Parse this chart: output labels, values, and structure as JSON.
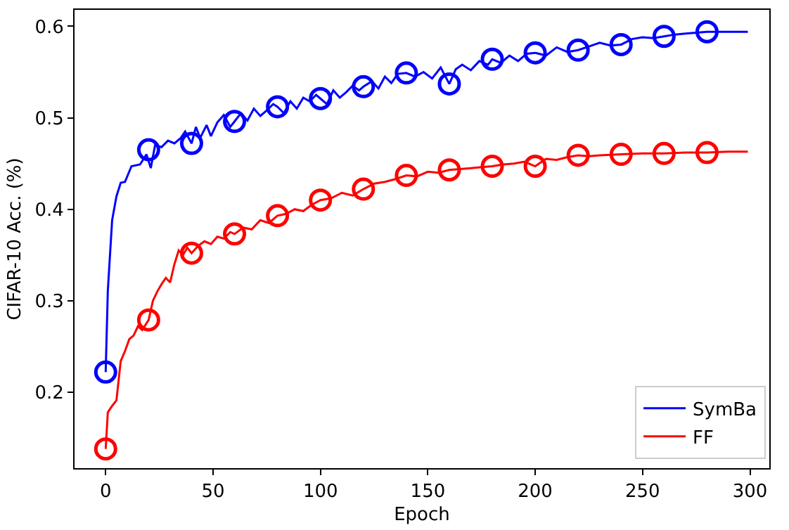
{
  "chart_data": {
    "type": "line",
    "xlabel": "Epoch",
    "ylabel": "CIFAR-10 Acc. (%)",
    "xlim": [
      -14.5,
      309
    ],
    "xticks": [
      0,
      50,
      100,
      150,
      200,
      250,
      300
    ],
    "ylim": [
      0.117,
      0.618
    ],
    "yticks": [
      0.2,
      0.3,
      0.4,
      0.5,
      0.6
    ],
    "grid": false,
    "legend": "bottom right",
    "series": [
      {
        "name": "SymBa",
        "color": "#0000ff",
        "marker": "none",
        "line_style": "solid",
        "x": [
          0,
          1,
          3,
          5,
          7,
          9,
          12,
          16,
          19,
          21,
          23,
          26,
          29,
          32,
          35,
          37,
          40,
          42,
          44,
          47,
          49,
          52,
          55,
          58,
          60,
          63,
          66,
          69,
          72,
          75,
          78,
          80,
          83,
          86,
          89,
          92,
          95,
          98,
          100,
          103,
          106,
          109,
          112,
          115,
          118,
          120,
          124,
          127,
          130,
          133,
          136,
          140,
          144,
          148,
          152,
          156,
          160,
          163,
          166,
          170,
          174,
          178,
          180,
          184,
          188,
          192,
          196,
          200,
          205,
          210,
          215,
          220,
          225,
          230,
          235,
          240,
          245,
          250,
          255,
          260,
          265,
          270,
          275,
          280,
          285,
          290,
          299
        ],
        "values": [
          0.222,
          0.311,
          0.388,
          0.414,
          0.429,
          0.43,
          0.447,
          0.449,
          0.46,
          0.445,
          0.47,
          0.468,
          0.475,
          0.472,
          0.478,
          0.485,
          0.472,
          0.49,
          0.478,
          0.492,
          0.48,
          0.495,
          0.503,
          0.49,
          0.496,
          0.505,
          0.497,
          0.51,
          0.502,
          0.508,
          0.515,
          0.512,
          0.505,
          0.518,
          0.51,
          0.522,
          0.518,
          0.525,
          0.521,
          0.515,
          0.53,
          0.522,
          0.528,
          0.535,
          0.53,
          0.534,
          0.54,
          0.532,
          0.545,
          0.538,
          0.548,
          0.549,
          0.545,
          0.55,
          0.543,
          0.555,
          0.537,
          0.553,
          0.558,
          0.552,
          0.562,
          0.558,
          0.564,
          0.56,
          0.568,
          0.562,
          0.57,
          0.571,
          0.568,
          0.577,
          0.572,
          0.574,
          0.578,
          0.582,
          0.579,
          0.58,
          0.586,
          0.588,
          0.587,
          0.589,
          0.591,
          0.592,
          0.593,
          0.594,
          0.594,
          0.594,
          0.594
        ]
      },
      {
        "name": "FF",
        "color": "#ff0000",
        "marker": "none",
        "line_style": "solid",
        "x": [
          0,
          1,
          3,
          5,
          7,
          9,
          11,
          13,
          15,
          17,
          20,
          22,
          24,
          26,
          28,
          30,
          32,
          34,
          36,
          38,
          40,
          43,
          46,
          49,
          52,
          55,
          58,
          60,
          64,
          68,
          72,
          76,
          80,
          84,
          88,
          92,
          96,
          100,
          105,
          110,
          115,
          120,
          125,
          130,
          135,
          140,
          145,
          150,
          155,
          160,
          165,
          170,
          175,
          180,
          185,
          190,
          195,
          200,
          205,
          210,
          215,
          220,
          225,
          230,
          240,
          250,
          260,
          270,
          280,
          290,
          299
        ],
        "values": [
          0.138,
          0.178,
          0.185,
          0.191,
          0.234,
          0.245,
          0.258,
          0.262,
          0.272,
          0.268,
          0.279,
          0.3,
          0.31,
          0.318,
          0.325,
          0.32,
          0.34,
          0.355,
          0.35,
          0.358,
          0.352,
          0.36,
          0.365,
          0.362,
          0.37,
          0.368,
          0.375,
          0.373,
          0.38,
          0.378,
          0.388,
          0.385,
          0.393,
          0.395,
          0.4,
          0.398,
          0.405,
          0.41,
          0.412,
          0.418,
          0.415,
          0.422,
          0.428,
          0.43,
          0.433,
          0.437,
          0.436,
          0.441,
          0.44,
          0.443,
          0.444,
          0.445,
          0.446,
          0.447,
          0.449,
          0.45,
          0.452,
          0.447,
          0.455,
          0.454,
          0.457,
          0.459,
          0.458,
          0.459,
          0.46,
          0.461,
          0.461,
          0.462,
          0.462,
          0.463,
          0.463
        ]
      },
      {
        "type": "scatter",
        "color": "#0000ff",
        "marker": "circle",
        "x": [
          0,
          20,
          40,
          60,
          80,
          100,
          120,
          140,
          160,
          180,
          200,
          220,
          240,
          260,
          280
        ],
        "values": [
          0.222,
          0.465,
          0.472,
          0.496,
          0.512,
          0.521,
          0.534,
          0.549,
          0.537,
          0.564,
          0.571,
          0.574,
          0.58,
          0.589,
          0.594
        ]
      },
      {
        "type": "scatter",
        "color": "#ff0000",
        "marker": "circle",
        "x": [
          0,
          20,
          40,
          60,
          80,
          100,
          120,
          140,
          160,
          180,
          200,
          220,
          240,
          260,
          280
        ],
        "values": [
          0.138,
          0.279,
          0.352,
          0.373,
          0.393,
          0.41,
          0.422,
          0.437,
          0.443,
          0.447,
          0.447,
          0.459,
          0.46,
          0.461,
          0.462
        ]
      }
    ]
  }
}
